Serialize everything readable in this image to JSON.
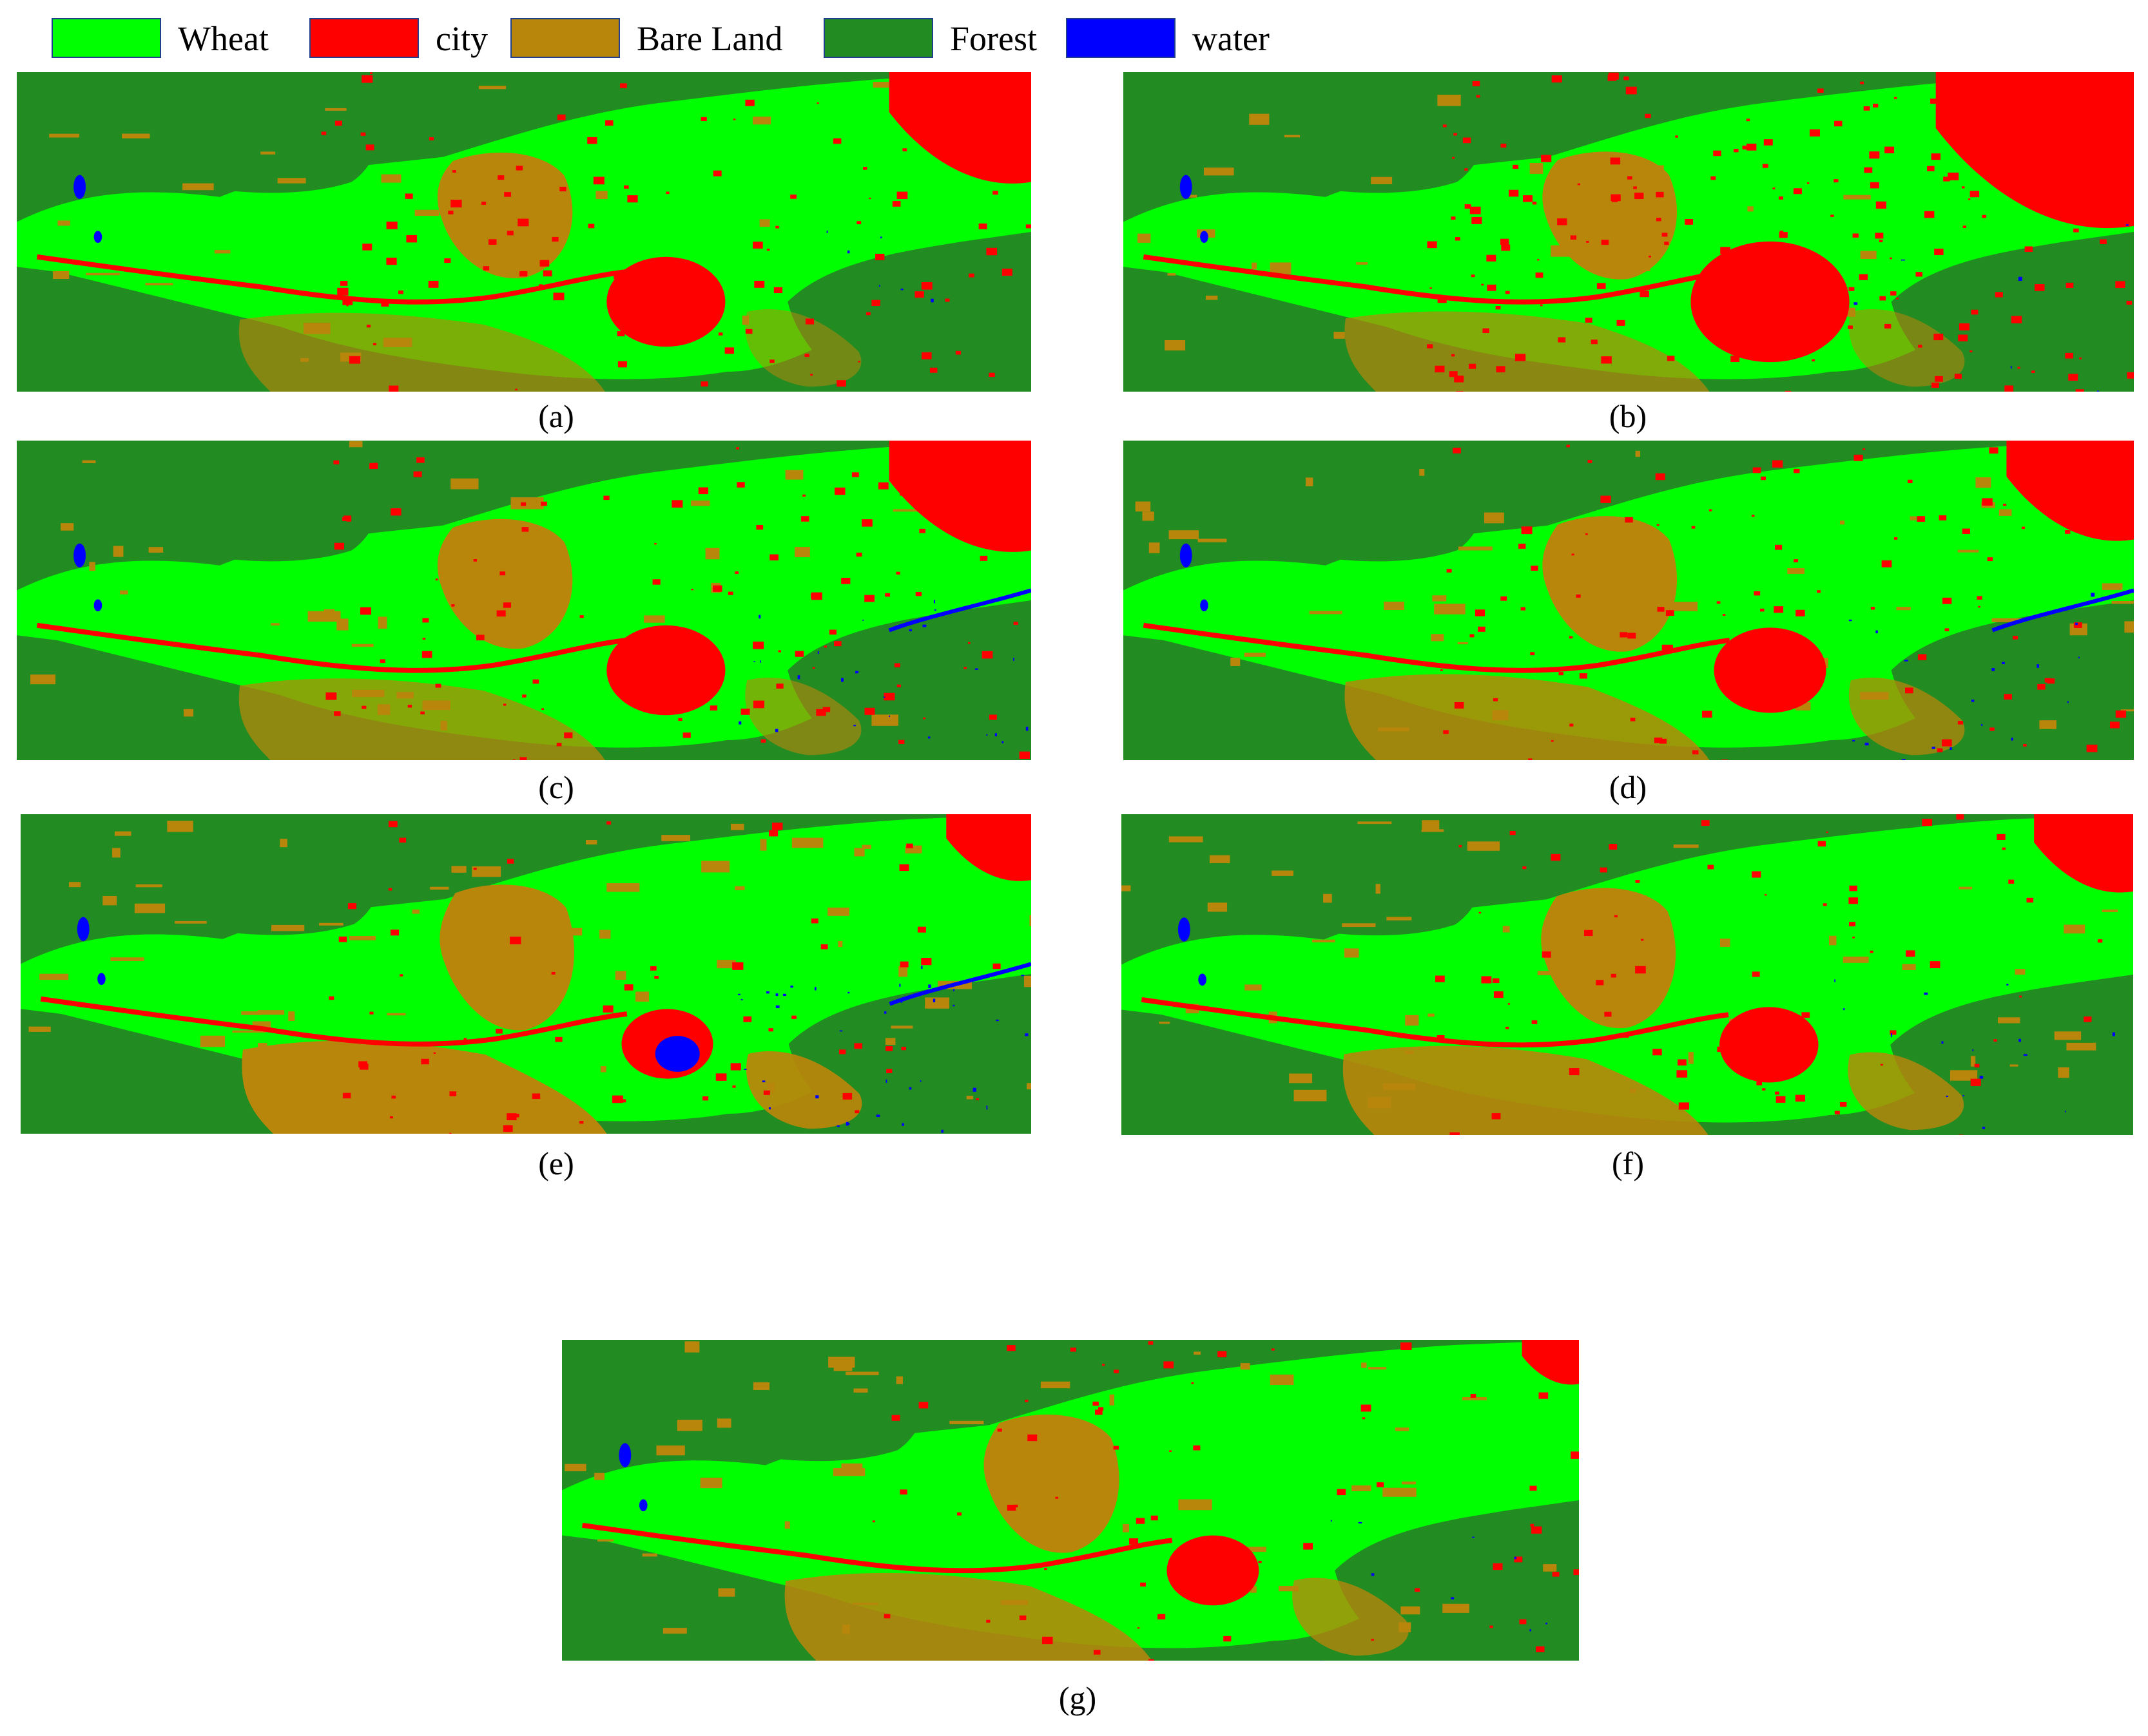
{
  "legend": [
    {
      "label": "Wheat",
      "color": "#00ff00"
    },
    {
      "label": "city",
      "color": "#ff0000"
    },
    {
      "label": "Bare Land",
      "color": "#b8860b"
    },
    {
      "label": "Forest",
      "color": "#228b22"
    },
    {
      "label": "water",
      "color": "#0000ff"
    }
  ],
  "panels": [
    {
      "id": "a",
      "caption": "(a)"
    },
    {
      "id": "b",
      "caption": "(b)"
    },
    {
      "id": "c",
      "caption": "(c)"
    },
    {
      "id": "d",
      "caption": "(d)"
    },
    {
      "id": "e",
      "caption": "(e)"
    },
    {
      "id": "f",
      "caption": "(f)"
    },
    {
      "id": "g",
      "caption": "(g)"
    }
  ]
}
